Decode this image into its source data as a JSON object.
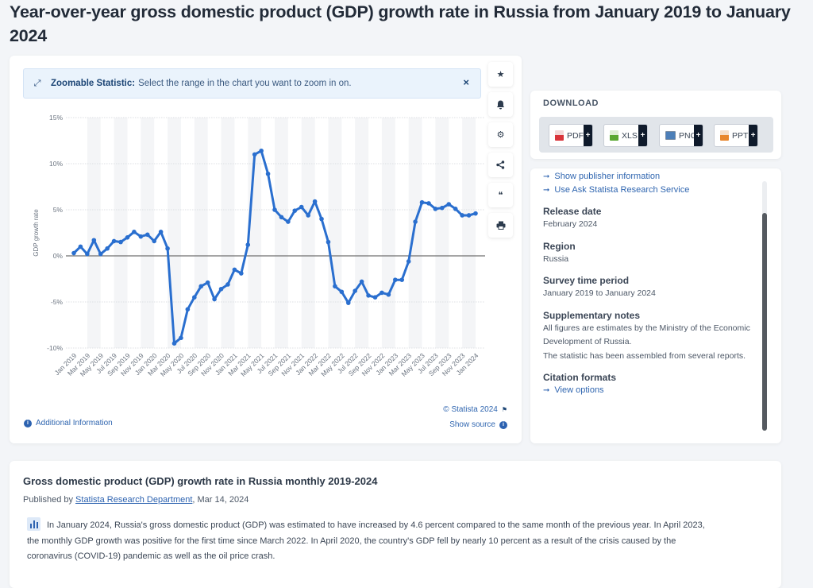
{
  "page": {
    "title": "Year-over-year gross domestic product (GDP) growth rate in Russia from January 2019 to January 2024"
  },
  "zoom_banner": {
    "icon": "expand-arrows-icon",
    "label_bold": "Zoomable Statistic:",
    "label_text": "Select the range in the chart you want to zoom in on.",
    "close_glyph": "×"
  },
  "toolbar": [
    {
      "name": "favorite",
      "icon": "star-icon",
      "glyph": "★"
    },
    {
      "name": "notification",
      "icon": "bell-icon",
      "glyph": "🔔"
    },
    {
      "name": "settings",
      "icon": "gear-icon",
      "glyph": "⚙"
    },
    {
      "name": "share",
      "icon": "share-icon",
      "glyph": "⋖"
    },
    {
      "name": "cite",
      "icon": "quote-icon",
      "glyph": "❝"
    },
    {
      "name": "print",
      "icon": "print-icon",
      "glyph": "⎙"
    }
  ],
  "chart_footer": {
    "additional_info": "Additional Information",
    "copyright": "© Statista 2024",
    "show_source": "Show source"
  },
  "download": {
    "title": "DOWNLOAD",
    "buttons": [
      {
        "label": "PDF",
        "color": "#d9343a"
      },
      {
        "label": "XLS",
        "color": "#5aa832"
      },
      {
        "label": "PNG",
        "color": "#4d7fb8"
      },
      {
        "label": "PPT",
        "color": "#e8872e"
      }
    ],
    "plus": "+"
  },
  "meta": {
    "links": [
      "Show publisher information",
      "Use Ask Statista Research Service"
    ],
    "sections": [
      {
        "heading": "Release date",
        "values": [
          "February 2024"
        ]
      },
      {
        "heading": "Region",
        "values": [
          "Russia"
        ]
      },
      {
        "heading": "Survey time period",
        "values": [
          "January 2019 to January 2024"
        ]
      },
      {
        "heading": "Supplementary notes",
        "values": [
          "All figures are estimates by the Ministry of the Economic Development of Russia.",
          "The statistic has been assembled from several reports."
        ]
      }
    ],
    "citation": {
      "heading": "Citation formats",
      "link": "View options"
    }
  },
  "description": {
    "title": "Gross domestic product (GDP) growth rate in Russia monthly 2019-2024",
    "published_prefix": "Published by ",
    "publisher": "Statista Research Department",
    "published_suffix": ", Mar 14, 2024",
    "text": "In January 2024, Russia's gross domestic product (GDP) was estimated to have increased by 4.6 percent compared to the same month of the previous year. In April 2023, the monthly GDP growth was positive for the first time since March 2022. In April 2020, the country's GDP fell by nearly 10 percent as a result of the crisis caused by the coronavirus (COVID-19) pandemic as well as the oil price crash."
  },
  "chart_data": {
    "type": "line",
    "title": "",
    "xlabel": "",
    "ylabel": "GDP growth rate",
    "ylim": [
      -10,
      15
    ],
    "yticks": [
      15,
      10,
      5,
      0,
      -5,
      -10
    ],
    "ytick_labels": [
      "15%",
      "10%",
      "5%",
      "0%",
      "-5%",
      "-10%"
    ],
    "grid": true,
    "line_color": "#2a6fcf",
    "x": [
      "Jan 2019",
      "Feb 2019",
      "Mar 2019",
      "Apr 2019",
      "May 2019",
      "Jun 2019",
      "Jul 2019",
      "Aug 2019",
      "Sep 2019",
      "Oct 2019",
      "Nov 2019",
      "Dec 2019",
      "Jan 2020",
      "Feb 2020",
      "Mar 2020",
      "Apr 2020",
      "May 2020",
      "Jun 2020",
      "Jul 2020",
      "Aug 2020",
      "Sep 2020",
      "Oct 2020",
      "Nov 2020",
      "Dec 2020",
      "Jan 2021",
      "Feb 2021",
      "Mar 2021",
      "Apr 2021",
      "May 2021",
      "Jun 2021",
      "Jul 2021",
      "Aug 2021",
      "Sep 2021",
      "Oct 2021",
      "Nov 2021",
      "Dec 2021",
      "Jan 2022",
      "Feb 2022",
      "Mar 2022",
      "Apr 2022",
      "May 2022",
      "Jun 2022",
      "Jul 2022",
      "Aug 2022",
      "Sep 2022",
      "Oct 2022",
      "Nov 2022",
      "Dec 2022",
      "Jan 2023",
      "Feb 2023",
      "Mar 2023",
      "Apr 2023",
      "May 2023",
      "Jun 2023",
      "Jul 2023",
      "Aug 2023",
      "Sep 2023",
      "Oct 2023",
      "Nov 2023",
      "Dec 2023",
      "Jan 2024"
    ],
    "xtick_labels": [
      "Jan 2019",
      "Mar 2019",
      "May 2019",
      "Jul 2019",
      "Sep 2019",
      "Nov 2019",
      "Jan 2020",
      "Mar 2020",
      "May 2020",
      "Jul 2020",
      "Sep 2020",
      "Nov 2020",
      "Jan 2021",
      "Mar 2021",
      "May 2021",
      "Jul 2021",
      "Sep 2021",
      "Nov 2021",
      "Jan 2022",
      "Mar 2022",
      "May 2022",
      "Jul 2022",
      "Sep 2022",
      "Nov 2022",
      "Jan 2023",
      "Mar 2023",
      "May 2023",
      "Jul 2023",
      "Sep 2023",
      "Nov 2023",
      "Jan 2024"
    ],
    "series": [
      {
        "name": "GDP growth rate",
        "values": [
          0.3,
          1.0,
          0.2,
          1.7,
          0.2,
          0.8,
          1.6,
          1.5,
          2.0,
          2.6,
          2.1,
          2.3,
          1.6,
          2.6,
          0.8,
          -9.5,
          -8.9,
          -5.8,
          -4.5,
          -3.3,
          -2.9,
          -4.7,
          -3.6,
          -3.1,
          -1.5,
          -1.9,
          1.2,
          11.0,
          11.4,
          8.9,
          5.0,
          4.2,
          3.7,
          4.9,
          5.3,
          4.4,
          5.9,
          4.0,
          1.5,
          -3.3,
          -3.9,
          -5.1,
          -3.8,
          -2.8,
          -4.3,
          -4.5,
          -4.0,
          -4.2,
          -2.6,
          -2.6,
          -0.6,
          3.7,
          5.8,
          5.7,
          5.1,
          5.2,
          5.6,
          5.1,
          4.4,
          4.4,
          4.6
        ]
      }
    ]
  }
}
